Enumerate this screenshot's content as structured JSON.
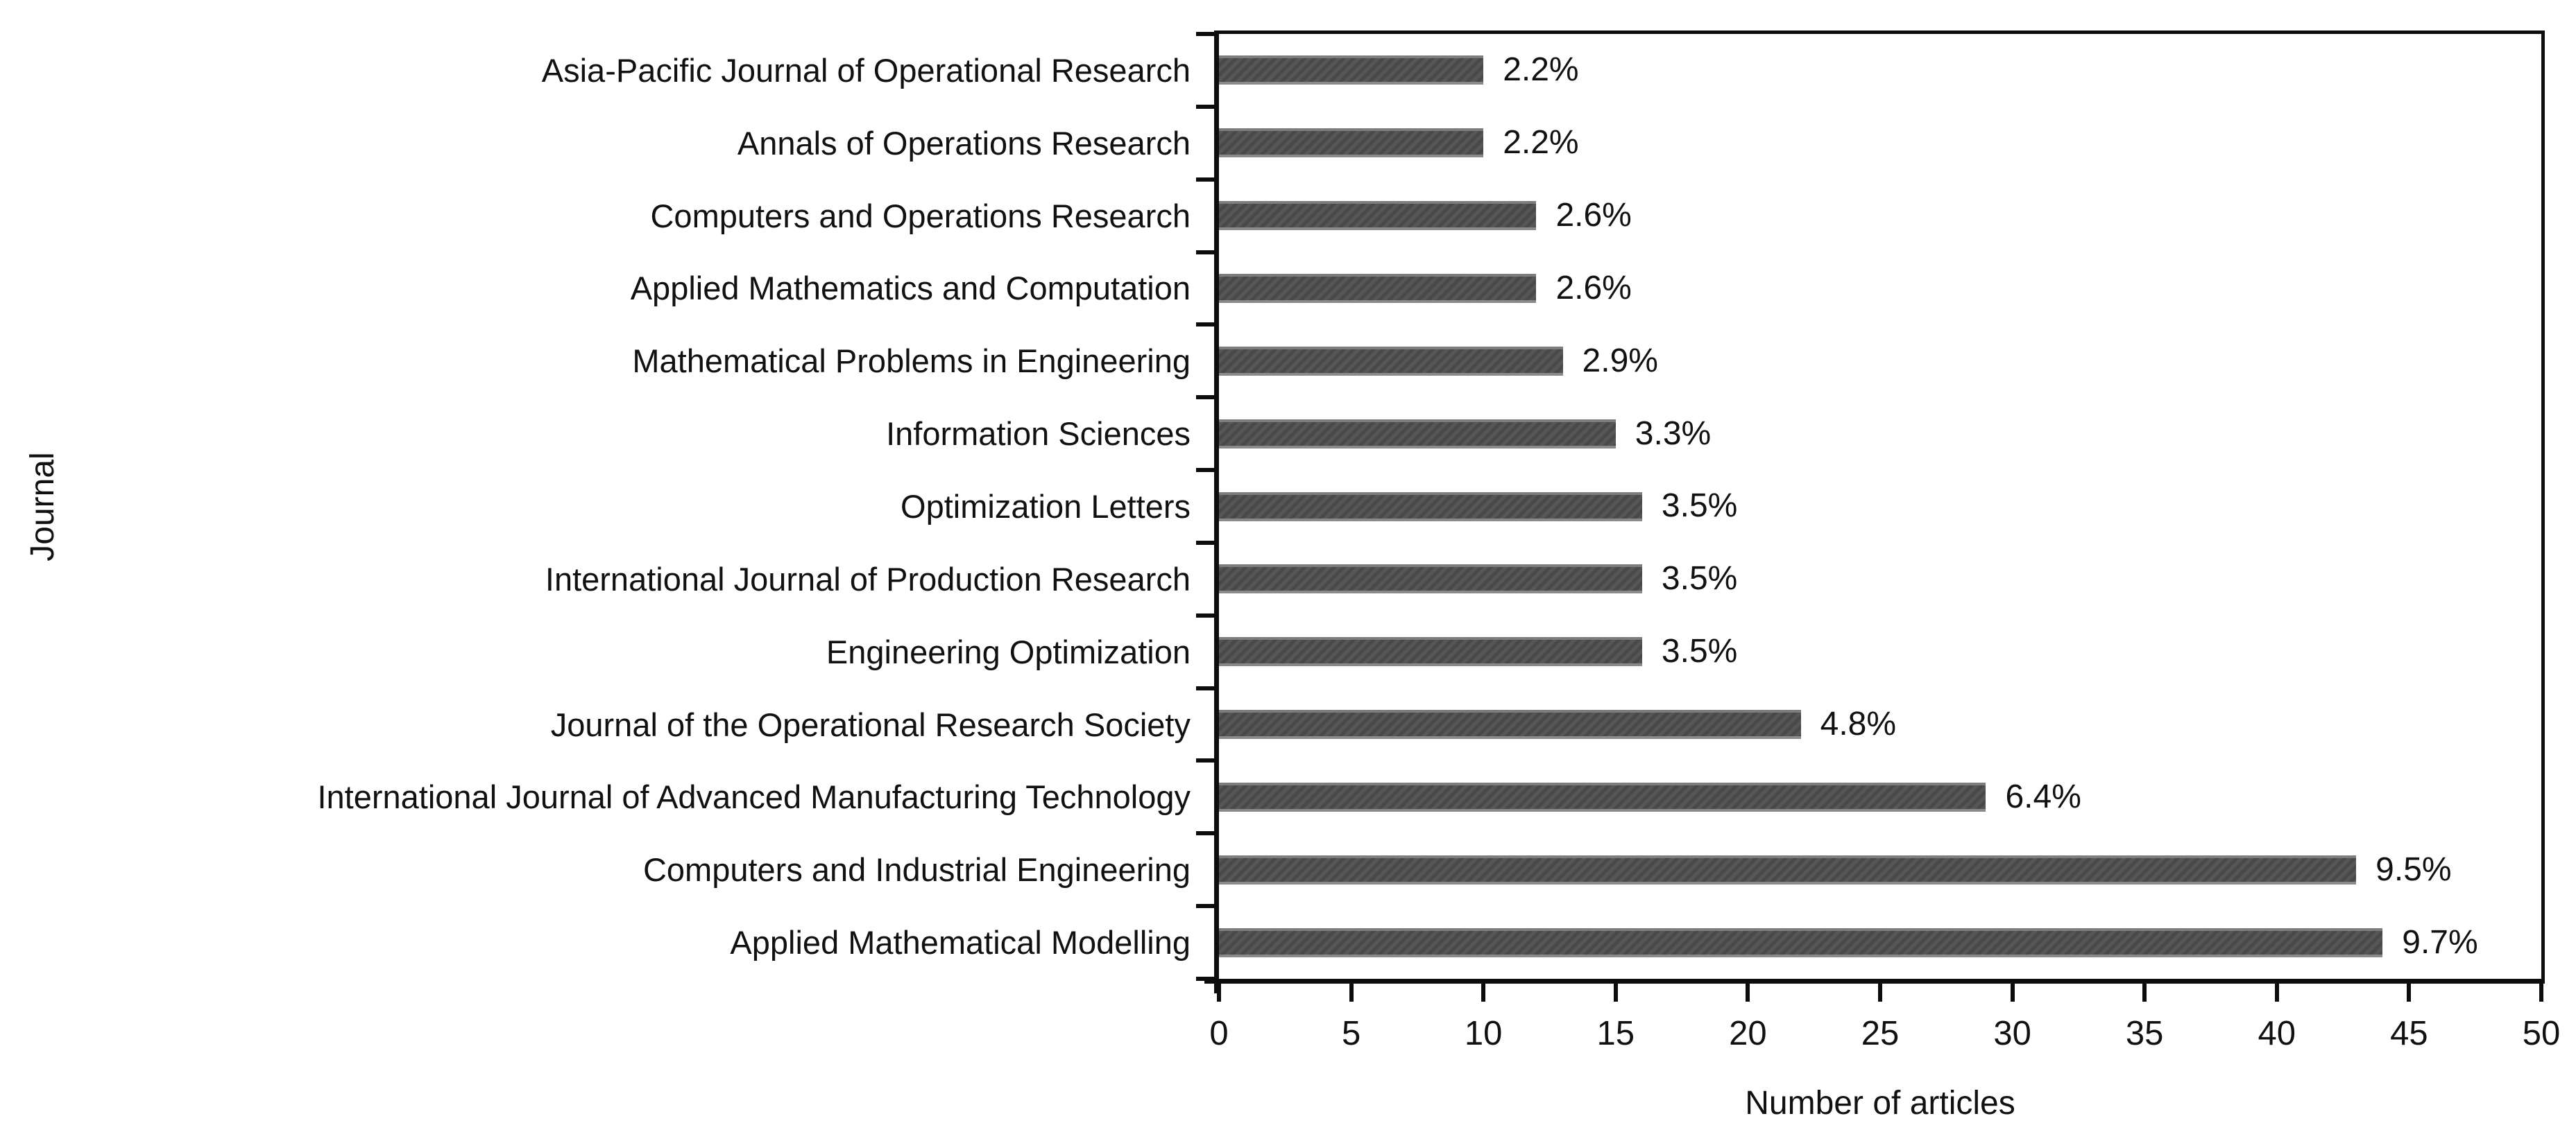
{
  "chart_data": {
    "type": "bar",
    "orientation": "horizontal",
    "title": "",
    "xlabel": "Number of articles",
    "ylabel": "Journal",
    "xlim": [
      0,
      50
    ],
    "xticks": [
      0,
      5,
      10,
      15,
      20,
      25,
      30,
      35,
      40,
      45,
      50
    ],
    "grid": "off",
    "legend_position": "none",
    "bar_color": "#4d4d4d",
    "axis_color": "#0d0d0d",
    "background_color": "#ffffff",
    "categories": [
      "Asia-Pacific Journal of Operational Research",
      "Annals of Operations Research",
      "Computers and Operations Research",
      "Applied Mathematics and Computation",
      "Mathematical Problems in Engineering",
      "Information Sciences",
      "Optimization Letters",
      "International Journal of Production Research",
      "Engineering Optimization",
      "Journal of the Operational Research Society",
      "International Journal of Advanced Manufacturing Technology",
      "Computers and Industrial Engineering",
      "Applied Mathematical Modelling"
    ],
    "series": [
      {
        "name": "Number of articles",
        "values": [
          10,
          10,
          12,
          12,
          13,
          15,
          16,
          16,
          16,
          22,
          29,
          43,
          44
        ],
        "data_labels": [
          "2.2%",
          "2.2%",
          "2.6%",
          "2.6%",
          "2.9%",
          "3.3%",
          "3.5%",
          "3.5%",
          "3.5%",
          "4.8%",
          "6.4%",
          "9.5%",
          "9.7%"
        ]
      }
    ]
  }
}
